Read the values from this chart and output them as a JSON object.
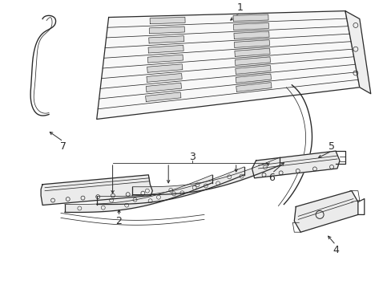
{
  "background_color": "#ffffff",
  "line_color": "#2a2a2a",
  "fig_width": 4.89,
  "fig_height": 3.6,
  "dpi": 100,
  "label_fontsize": 9
}
